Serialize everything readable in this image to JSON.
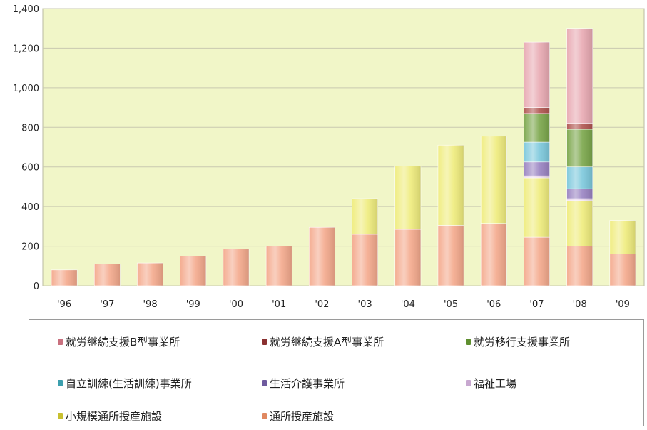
{
  "chart_data": {
    "type": "bar",
    "stacked": true,
    "categories": [
      "'96",
      "'97",
      "'98",
      "'99",
      "'00",
      "'01",
      "'02",
      "'03",
      "'04",
      "'05",
      "'06",
      "'07",
      "'08",
      "'09"
    ],
    "ylim": [
      0,
      1400
    ],
    "yticks": [
      "0",
      "200",
      "400",
      "600",
      "800",
      "1,000",
      "1,200",
      "1,400"
    ],
    "grid": true,
    "legend_position": "bottom",
    "series": [
      {
        "name": "通所授産施設",
        "color": "#f4a98c",
        "values": [
          80,
          110,
          115,
          150,
          185,
          200,
          295,
          260,
          285,
          305,
          315,
          245,
          200,
          160
        ]
      },
      {
        "name": "小規模通所授産施設",
        "color": "#efec7c",
        "values": [
          0,
          0,
          0,
          0,
          0,
          0,
          0,
          180,
          320,
          405,
          440,
          300,
          230,
          170
        ]
      },
      {
        "name": "福祉工場",
        "color": "#e9d5ec",
        "values": [
          0,
          0,
          0,
          0,
          0,
          0,
          0,
          0,
          0,
          0,
          0,
          10,
          10,
          0
        ]
      },
      {
        "name": "生活介護事業所",
        "color": "#9983c2",
        "values": [
          0,
          0,
          0,
          0,
          0,
          0,
          0,
          0,
          0,
          0,
          0,
          70,
          50,
          0
        ]
      },
      {
        "name": "自立訓練(生活訓練)事業所",
        "color": "#7cc8dc",
        "values": [
          0,
          0,
          0,
          0,
          0,
          0,
          0,
          0,
          0,
          0,
          0,
          100,
          110,
          0
        ]
      },
      {
        "name": "就労移行支援事業所",
        "color": "#7aa64a",
        "values": [
          0,
          0,
          0,
          0,
          0,
          0,
          0,
          0,
          0,
          0,
          0,
          145,
          190,
          0
        ]
      },
      {
        "name": "就労継続支援A型事業所",
        "color": "#b05550",
        "values": [
          0,
          0,
          0,
          0,
          0,
          0,
          0,
          0,
          0,
          0,
          0,
          30,
          30,
          0
        ]
      },
      {
        "name": "就労継続支援B型事業所",
        "color": "#e8a9b2",
        "values": [
          0,
          0,
          0,
          0,
          0,
          0,
          0,
          0,
          0,
          0,
          0,
          330,
          480,
          0
        ]
      }
    ]
  },
  "legend": {
    "items": [
      {
        "label": "就労継続支援B型事業所",
        "color": "#c9707e"
      },
      {
        "label": "就労継続支援A型事業所",
        "color": "#8a3030"
      },
      {
        "label": "就労移行支援事業所",
        "color": "#5f8f30"
      },
      {
        "label": "自立訓練(生活訓練)事業所",
        "color": "#3c9fae"
      },
      {
        "label": "生活介護事業所",
        "color": "#6e5a9e"
      },
      {
        "label": "福祉工場",
        "color": "#c8a8d0"
      },
      {
        "label": "小規模通所授産施設",
        "color": "#c8c030"
      },
      {
        "label": "通所授産施設",
        "color": "#e08860"
      }
    ]
  },
  "colors": {
    "plot_background": "#f1f6c8",
    "grid": "#c9c9b0"
  }
}
